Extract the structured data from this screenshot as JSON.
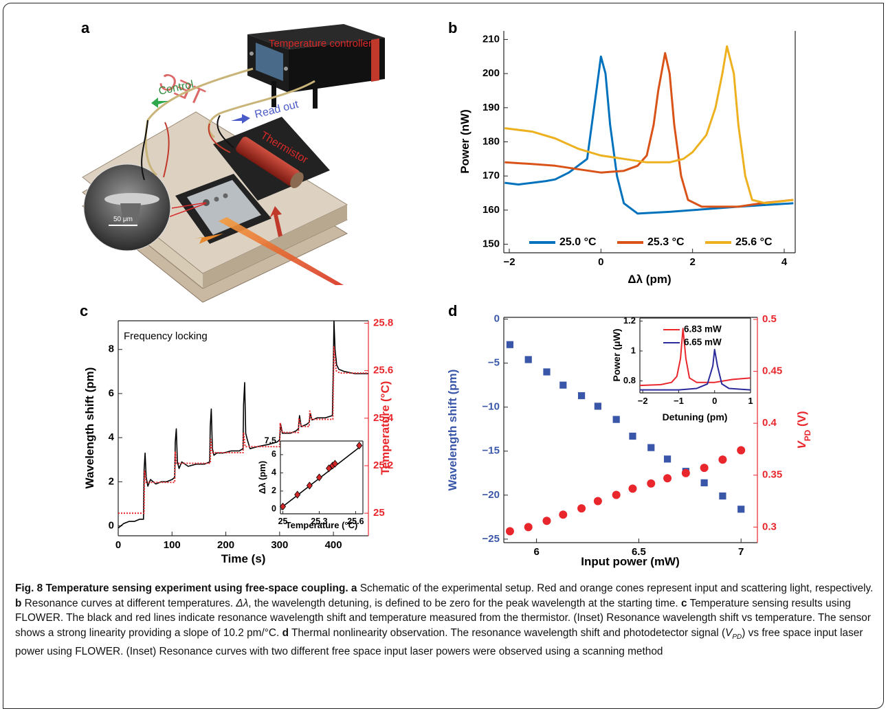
{
  "panel_labels": [
    "a",
    "b",
    "c",
    "d"
  ],
  "schematic": {
    "controller": "Temperature controller",
    "control": "Control",
    "read_out": "Read out",
    "thermistor": "Thermistor",
    "tec": "TEC",
    "scale_bar": "50 μm"
  },
  "chart_data": [
    {
      "type": "line",
      "xlabel": "Δλ (pm)",
      "ylabel": "Power (nW)",
      "xlim": [
        -2.12,
        4.24
      ],
      "ylim": [
        147.5,
        212.5
      ],
      "xticks": [
        {
          "value": -2,
          "label": "−2"
        },
        0,
        2,
        4
      ],
      "yticks": [
        150,
        160,
        170,
        180,
        190,
        200,
        210
      ],
      "legend": "bottom",
      "series": [
        {
          "name": "25.0 °C",
          "color": "#0072bd",
          "x": [
            -2.1,
            -1.8,
            -1.5,
            -1.2,
            -1,
            -0.7,
            -0.4,
            -0.3,
            -0.2,
            -0.1,
            0,
            0.1,
            0.2,
            0.35,
            0.5,
            0.8,
            1.5,
            2,
            3,
            4.2
          ],
          "values": [
            168,
            167.5,
            168,
            168.5,
            169,
            171,
            174,
            175,
            185,
            195,
            205,
            200,
            185,
            170,
            162,
            159,
            159.5,
            160,
            161,
            162
          ]
        },
        {
          "name": "25.3 °C",
          "color": "#d95319",
          "x": [
            -2.1,
            -1.5,
            -1,
            -0.5,
            0,
            0.5,
            0.8,
            1,
            1.15,
            1.25,
            1.4,
            1.5,
            1.6,
            1.75,
            1.9,
            2.2,
            3,
            3.5,
            4.2
          ],
          "values": [
            174,
            173.5,
            173,
            172,
            171,
            171.5,
            173,
            176,
            185,
            195,
            206,
            200,
            185,
            170,
            163,
            161,
            161,
            162,
            163
          ]
        },
        {
          "name": "25.6 °C",
          "color": "#edb120",
          "x": [
            -2.1,
            -1.5,
            -1,
            -0.5,
            0,
            0.5,
            1,
            1.5,
            1.8,
            2,
            2.3,
            2.5,
            2.65,
            2.75,
            2.9,
            3,
            3.15,
            3.3,
            3.6,
            4.2
          ],
          "values": [
            184,
            183,
            181,
            178,
            176,
            175,
            174,
            174,
            175,
            177,
            182,
            190,
            200,
            208,
            200,
            185,
            170,
            163,
            162,
            163
          ]
        }
      ]
    },
    {
      "type": "line",
      "xlabel": "Time (s)",
      "ylabel": "Wavelength shift (pm)",
      "y2label": "Temperature (°C)",
      "annotation": "Frequency locking",
      "xlim": [
        0,
        465
      ],
      "ylim": [
        -0.45,
        9.3
      ],
      "y2lim": [
        24.905,
        25.81
      ],
      "xticks": [
        0,
        100,
        200,
        300,
        400
      ],
      "yticks": [
        0,
        2,
        4,
        6,
        8
      ],
      "y2ticks": [
        25,
        25.2,
        25.4,
        25.6,
        25.8
      ],
      "y2_axis_color": "#e8262b",
      "series": [
        {
          "color": "#000000",
          "style": "solid",
          "x": [
            0,
            10,
            20,
            30,
            40,
            47,
            48,
            50,
            52,
            55,
            60,
            70,
            80,
            90,
            100,
            105,
            106,
            108,
            110,
            113,
            118,
            130,
            145,
            160,
            170,
            171,
            173,
            175,
            178,
            183,
            195,
            210,
            225,
            232,
            233,
            235,
            237,
            240,
            245,
            260,
            280,
            295,
            300,
            302,
            305,
            310,
            320,
            330,
            335,
            337,
            340,
            350,
            355,
            357,
            360,
            370,
            385,
            398,
            400,
            401,
            403,
            406,
            410,
            420,
            440,
            465
          ],
          "values": [
            -0.1,
            0.1,
            0.2,
            0.2,
            0.3,
            0.3,
            2.5,
            3.3,
            2.2,
            1.8,
            2.1,
            1.9,
            2,
            2,
            2.1,
            2.2,
            3.8,
            4.4,
            2.9,
            2.6,
            2.9,
            2.7,
            2.8,
            2.8,
            2.9,
            4.5,
            5.3,
            3.5,
            3.2,
            3.3,
            3.3,
            3.4,
            3.4,
            3.5,
            5.5,
            6.5,
            4.2,
            3.9,
            3.5,
            3.6,
            3.7,
            3.8,
            3.9,
            4.6,
            4.2,
            4.2,
            4.2,
            4.3,
            4.4,
            5,
            4.5,
            4.6,
            4.7,
            5.1,
            4.8,
            4.9,
            4.9,
            5,
            7.5,
            9.3,
            8,
            7.3,
            7.1,
            7,
            6.9,
            6.9
          ]
        },
        {
          "color": "#e8262b",
          "style": "dotted",
          "axis": "y2",
          "x": [
            0,
            48,
            49,
            52,
            60,
            105,
            106,
            108,
            115,
            171,
            172,
            175,
            182,
            232,
            233,
            236,
            242,
            300,
            301,
            305,
            335,
            336,
            340,
            355,
            356,
            360,
            399,
            401,
            405,
            412,
            465
          ],
          "values": [
            25,
            25,
            25.18,
            25.13,
            25.13,
            25.13,
            25.26,
            25.21,
            25.21,
            25.21,
            25.31,
            25.255,
            25.255,
            25.255,
            25.34,
            25.28,
            25.28,
            25.28,
            25.38,
            25.34,
            25.34,
            25.4,
            25.365,
            25.365,
            25.43,
            25.395,
            25.395,
            25.7,
            25.6,
            25.59,
            25.59
          ]
        }
      ]
    },
    {
      "type": "scatter",
      "xlabel": "Temperature (°C)",
      "ylabel": "Δλ (pm)",
      "xlim": [
        24.98,
        25.66
      ],
      "ylim": [
        -0.5,
        7.5
      ],
      "xticks": [
        25,
        25.3,
        25.6
      ],
      "yticks": [
        0,
        2,
        4,
        6,
        7.5
      ],
      "series": [
        {
          "color": "#d62728",
          "marker": "diamond",
          "x": [
            25,
            25.12,
            25.22,
            25.3,
            25.38,
            25.41,
            25.43,
            25.63
          ],
          "values": [
            0.3,
            1.6,
            2.6,
            3.5,
            4.5,
            4.8,
            5,
            7
          ]
        }
      ],
      "fit": {
        "color": "#000000",
        "x": [
          24.99,
          25.64
        ],
        "values": [
          0.2,
          6.9
        ]
      }
    },
    {
      "type": "scatter",
      "xlabel": "Input power (mW)",
      "ylabel": "Wavelength shift (pm)",
      "y2label": [
        "V",
        "PD",
        " (V)"
      ],
      "xlim": [
        5.84,
        7.08
      ],
      "ylim": [
        -25.4,
        0.2
      ],
      "y2lim": [
        0.285,
        0.502
      ],
      "xticks": [
        6,
        6.5,
        7
      ],
      "yticks": [
        {
          "value": -25,
          "label": "−25"
        },
        {
          "value": -20,
          "label": "−20"
        },
        {
          "value": -15,
          "label": "−15"
        },
        {
          "value": -10,
          "label": "−10"
        },
        {
          "value": -5,
          "label": "−5"
        },
        0
      ],
      "y2ticks": [
        0.3,
        0.35,
        0.4,
        0.45,
        0.5
      ],
      "y_axis_color": "#3a56a8",
      "y2_axis_color": "#e8262b",
      "series": [
        {
          "color": "#3a56a8",
          "marker": "square",
          "x": [
            5.87,
            5.96,
            6.05,
            6.13,
            6.22,
            6.3,
            6.39,
            6.47,
            6.56,
            6.64,
            6.73,
            6.82,
            6.91,
            7
          ],
          "values": [
            -2.9,
            -4.6,
            -6,
            -7.5,
            -8.7,
            -9.9,
            -11.4,
            -13.3,
            -14.6,
            -15.9,
            -17.3,
            -18.6,
            -20.1,
            -21.6
          ]
        },
        {
          "color": "#e8262b",
          "marker": "circle",
          "axis": "y2",
          "x": [
            5.87,
            5.96,
            6.05,
            6.13,
            6.22,
            6.3,
            6.39,
            6.47,
            6.56,
            6.64,
            6.73,
            6.82,
            6.91,
            7
          ],
          "values": [
            0.296,
            0.3,
            0.306,
            0.312,
            0.318,
            0.325,
            0.331,
            0.337,
            0.342,
            0.347,
            0.352,
            0.357,
            0.365,
            0.374
          ]
        }
      ]
    },
    {
      "type": "line",
      "xlabel": "Detuning (pm)",
      "ylabel": "Power (μW)",
      "xlim": [
        -2.08,
        1
      ],
      "ylim": [
        0.72,
        1.22
      ],
      "xticks": [
        {
          "value": -2,
          "label": "−2"
        },
        {
          "value": -1,
          "label": "−1"
        },
        0,
        1
      ],
      "yticks": [
        0.8,
        1,
        1.2
      ],
      "legend": "top-right",
      "series": [
        {
          "name": "6.83 mW",
          "color": "#e8262b",
          "x": [
            -2.08,
            -1.5,
            -1.2,
            -1.05,
            -0.95,
            -0.88,
            -0.8,
            -0.7,
            -0.5,
            0,
            0.5,
            1
          ],
          "values": [
            0.77,
            0.775,
            0.79,
            0.83,
            0.95,
            1.15,
            0.95,
            0.82,
            0.79,
            0.79,
            0.81,
            0.82
          ]
        },
        {
          "name": "6.65 mW",
          "color": "#2a2a9a",
          "x": [
            -2.08,
            -1,
            -0.5,
            -0.2,
            -0.05,
            0,
            0.08,
            0.2,
            0.4,
            1
          ],
          "values": [
            0.74,
            0.74,
            0.75,
            0.78,
            0.9,
            1.01,
            0.9,
            0.78,
            0.75,
            0.74
          ]
        }
      ]
    }
  ],
  "caption": [
    "Fig. 8 Temperature sensing experiment using free-space coupling.",
    " a",
    " Schematic of the experimental setup. Red and orange cones represent input and scattering light, respectively. ",
    "b",
    " Resonance curves at different temperatures. ",
    "Δλ",
    ", the wavelength detuning, is defined to be zero for the peak wavelength at the starting time. ",
    "c",
    " Temperature sensing results using FLOWER. The black and red lines indicate resonance wavelength shift and temperature measured from the thermistor. (Inset) Resonance wavelength shift vs temperature. The sensor shows a strong linearity providing a slope of 10.2 pm/°C. ",
    "d",
    " Thermal nonlinearity observation. The resonance wavelength shift and photodetector signal (",
    "V",
    "PD",
    ") vs free space input laser power using FLOWER. (Inset) Resonance curves with two different free space input laser powers were observed using a scanning method"
  ]
}
